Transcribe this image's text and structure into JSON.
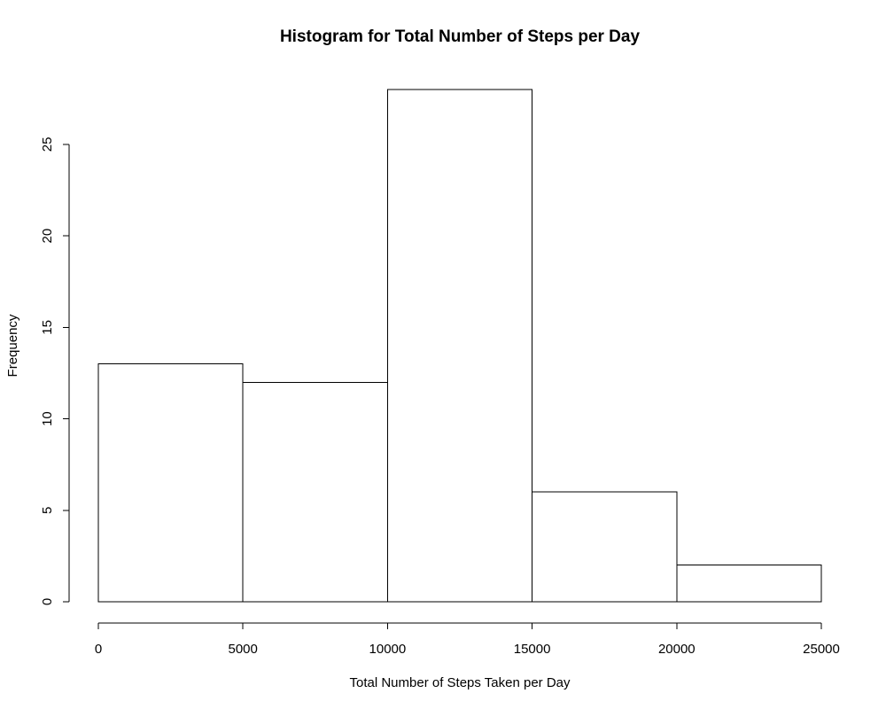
{
  "chart_data": {
    "type": "bar",
    "title": "Histogram for Total Number of Steps per Day",
    "xlabel": "Total Number of Steps Taken per Day",
    "ylabel": "Frequency",
    "bins": [
      {
        "start": 0,
        "end": 5000,
        "count": 13
      },
      {
        "start": 5000,
        "end": 10000,
        "count": 12
      },
      {
        "start": 10000,
        "end": 15000,
        "count": 28
      },
      {
        "start": 15000,
        "end": 20000,
        "count": 6
      },
      {
        "start": 20000,
        "end": 25000,
        "count": 2
      }
    ],
    "xlim": [
      0,
      25000
    ],
    "ylim": [
      0,
      28
    ],
    "x_ticks": [
      0,
      5000,
      10000,
      15000,
      20000,
      25000
    ],
    "y_ticks": [
      0,
      5,
      10,
      15,
      20,
      25
    ],
    "bar_fill": "#ffffff",
    "bar_stroke": "#000000",
    "grid": false,
    "legend": "none"
  }
}
